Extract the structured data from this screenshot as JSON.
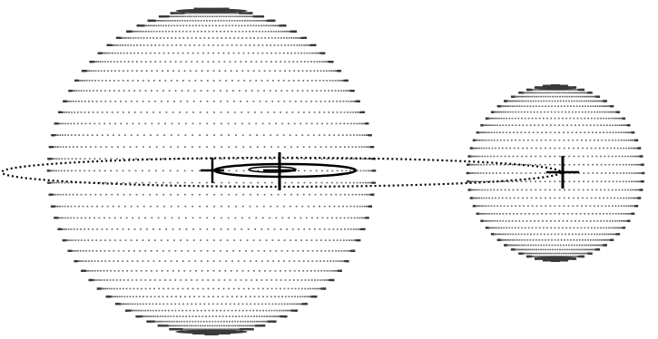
{
  "diagram": {
    "kind": "binary-star-dot-mesh",
    "colors": {
      "background": "#ffffff",
      "mesh_dot": "#6a6a6a",
      "limb_dark": "#3a3a3a",
      "orbit": "#000000",
      "marker": "#000000"
    },
    "bodies": [
      {
        "id": "primary-star",
        "shape": "sphere",
        "relative_size": 1.0
      },
      {
        "id": "secondary-star",
        "shape": "sphere",
        "relative_size": 0.65
      }
    ],
    "markers": [
      {
        "id": "primary-center",
        "shape": "cross"
      },
      {
        "id": "center-of-mass",
        "shape": "cross"
      },
      {
        "id": "secondary-center",
        "shape": "cross"
      }
    ],
    "orbits": [
      {
        "id": "secondary-orbit",
        "line": "dotted"
      },
      {
        "id": "primary-orbit",
        "line": "solid"
      }
    ]
  }
}
